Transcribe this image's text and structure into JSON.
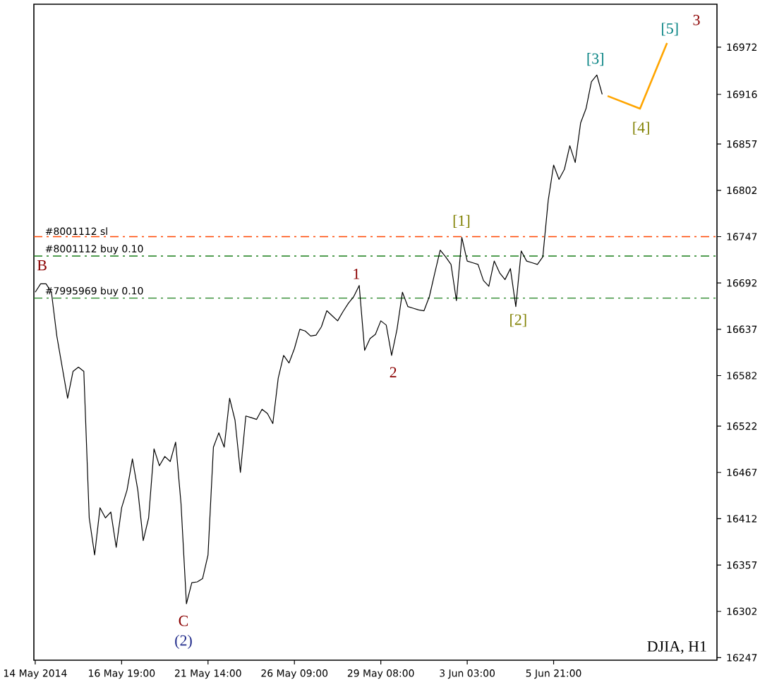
{
  "chart_data": {
    "type": "line",
    "categories": [
      "14 May 2014",
      null,
      null,
      null,
      null,
      null,
      null,
      null,
      null,
      null,
      null,
      null,
      null,
      null,
      null,
      null,
      "16 May 19:00",
      null,
      null,
      null,
      null,
      null,
      null,
      null,
      null,
      null,
      null,
      null,
      null,
      null,
      null,
      null,
      "21 May 14:00",
      null,
      null,
      null,
      null,
      null,
      null,
      null,
      null,
      null,
      null,
      null,
      null,
      null,
      null,
      null,
      "26 May 09:00",
      null,
      null,
      null,
      null,
      null,
      null,
      null,
      null,
      null,
      null,
      null,
      null,
      null,
      null,
      null,
      "29 May 08:00",
      null,
      null,
      null,
      null,
      null,
      null,
      null,
      null,
      null,
      null,
      null,
      null,
      null,
      null,
      null,
      "3 Jun 03:00",
      null,
      null,
      null,
      null,
      null,
      null,
      null,
      null,
      null,
      null,
      null,
      null,
      null,
      null,
      null,
      "5 Jun 21:00",
      null,
      null,
      null,
      null,
      null,
      null,
      null,
      null,
      null,
      null,
      null,
      null,
      null,
      null,
      null,
      null,
      null,
      null,
      null,
      null,
      null,
      null,
      null,
      null,
      null,
      null,
      null,
      null,
      null,
      null
    ],
    "series": [
      {
        "color": "#000000",
        "values": [
          16681,
          16691,
          16691,
          16681,
          16629,
          16592,
          16555,
          16587,
          16592,
          16587,
          16413,
          16369,
          16425,
          16413,
          16420,
          16378,
          16425,
          16446,
          16483,
          16446,
          16386,
          16413,
          16495,
          16475,
          16486,
          16480,
          16503,
          16430,
          16311,
          16336,
          16337,
          16341,
          16369,
          16497,
          16514,
          16497,
          16555,
          16529,
          16467,
          16534,
          16532,
          16530,
          16542,
          16537,
          16525,
          16579,
          16606,
          16597,
          16614,
          16637,
          16635,
          16629,
          16630,
          16640,
          16659,
          16653,
          16647,
          16658,
          16668,
          16676,
          16689,
          16612,
          16626,
          16631,
          16647,
          16642,
          16606,
          16637,
          16681,
          16664,
          16662,
          16660,
          16659,
          16676,
          16704,
          16731,
          16723,
          16714,
          16671,
          16746,
          16718,
          16716,
          16714,
          16695,
          16688,
          16718,
          16704,
          16696,
          16709,
          16664,
          16730,
          16718,
          16716,
          16714,
          16723,
          16790,
          16832,
          16815,
          16827,
          16855,
          16835,
          16882,
          16899,
          16931,
          16939,
          16916,
          null,
          null,
          null,
          null,
          null,
          null,
          null,
          null,
          null,
          null,
          null,
          null,
          null,
          null,
          null,
          null,
          null,
          null,
          null,
          null,
          null
        ]
      },
      {
        "color": "#ffa500",
        "values": [
          null,
          null,
          null,
          null,
          null,
          null,
          null,
          null,
          null,
          null,
          null,
          null,
          null,
          null,
          null,
          null,
          null,
          null,
          null,
          null,
          null,
          null,
          null,
          null,
          null,
          null,
          null,
          null,
          null,
          null,
          null,
          null,
          null,
          null,
          null,
          null,
          null,
          null,
          null,
          null,
          null,
          null,
          null,
          null,
          null,
          null,
          null,
          null,
          null,
          null,
          null,
          null,
          null,
          null,
          null,
          null,
          null,
          null,
          null,
          null,
          null,
          null,
          null,
          null,
          null,
          null,
          null,
          null,
          null,
          null,
          null,
          null,
          null,
          null,
          null,
          null,
          null,
          null,
          null,
          null,
          null,
          null,
          null,
          null,
          null,
          null,
          null,
          null,
          null,
          null,
          null,
          null,
          null,
          null,
          null,
          null,
          null,
          null,
          null,
          null,
          null,
          null,
          null,
          null,
          null,
          null,
          16914,
          null,
          null,
          null,
          null,
          null,
          16899,
          null,
          null,
          null,
          null,
          16977,
          null,
          null,
          null,
          null,
          null,
          null,
          null,
          null,
          null
        ]
      }
    ],
    "ylim": [
      16244,
      17023
    ],
    "yticks": [
      16247,
      16302,
      16357,
      16412,
      16467,
      16522,
      16582,
      16637,
      16692,
      16747,
      16802,
      16857,
      16916,
      16972
    ],
    "ref_lines": [
      {
        "axis": "y",
        "value": 16747,
        "label": "#8001112 sl",
        "color": "#ff4500",
        "line_style": "dashed"
      },
      {
        "axis": "y",
        "value": 16724,
        "label": "#8001112 buy 0.10",
        "color": "#1a7f1a",
        "line_style": "dashed"
      },
      {
        "axis": "y",
        "value": 16674,
        "label": "#7995969 buy 0.10",
        "color": "#1a7f1a",
        "line_style": "dashed"
      }
    ],
    "annotations": [
      "B",
      "C",
      "(2)",
      "1",
      "2",
      "[1]",
      "[2]",
      "[3]",
      "[4]",
      {
        "text": "[5]",
        "y": 16977
      },
      "3",
      "DJIA, H1"
    ],
    "marker": "none"
  }
}
